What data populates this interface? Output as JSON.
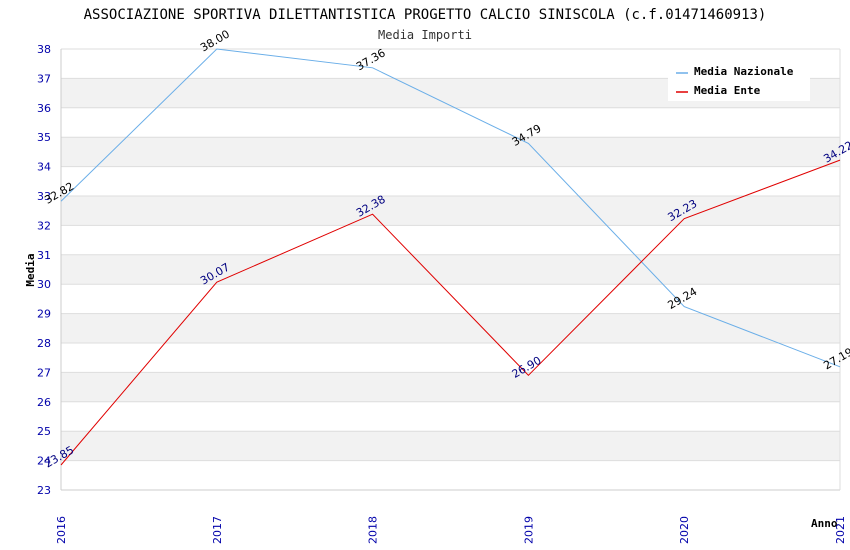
{
  "chart_data": {
    "type": "line",
    "title": "ASSOCIAZIONE SPORTIVA DILETTANTISTICA PROGETTO CALCIO SINISCOLA (c.f.01471460913)",
    "subtitle": "Media Importi",
    "xlabel": "Anno",
    "ylabel": "Media",
    "x": [
      "2016",
      "2017",
      "2018",
      "2019",
      "2020",
      "2021"
    ],
    "ylim": [
      23,
      38
    ],
    "yticks": [
      23,
      24,
      25,
      26,
      27,
      28,
      29,
      30,
      31,
      32,
      33,
      34,
      35,
      36,
      37,
      38
    ],
    "legend_position": "top-right",
    "series": [
      {
        "name": "Media Nazionale",
        "color": "#6aaee8",
        "values": [
          32.82,
          38.0,
          37.36,
          34.79,
          29.24,
          27.19
        ],
        "labels": [
          "32.82",
          "38.00",
          "37.36",
          "34.79",
          "29.24",
          "27.19"
        ]
      },
      {
        "name": "Media Ente",
        "color": "#e00000",
        "values": [
          23.85,
          30.07,
          32.38,
          26.9,
          32.23,
          34.22
        ],
        "labels": [
          "23.85",
          "30.07",
          "32.38",
          "26.90",
          "32.23",
          "34.22"
        ]
      }
    ]
  }
}
